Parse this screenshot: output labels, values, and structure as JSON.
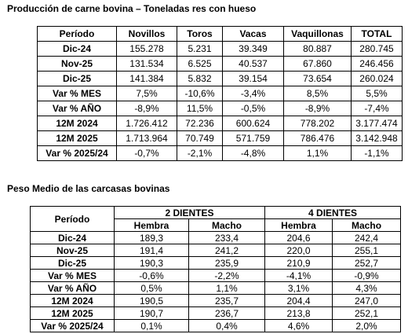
{
  "title1": "Producción de carne bovina – Toneladas res con hueso",
  "table1": {
    "headers": [
      "Período",
      "Novillos",
      "Toros",
      "Vacas",
      "Vaquillonas",
      "TOTAL"
    ],
    "rows": [
      [
        "Dic-24",
        "155.278",
        "5.231",
        "39.349",
        "80.887",
        "280.745"
      ],
      [
        "Nov-25",
        "131.534",
        "6.525",
        "40.537",
        "67.860",
        "246.456"
      ],
      [
        "Dic-25",
        "141.384",
        "5.832",
        "39.154",
        "73.654",
        "260.024"
      ],
      [
        "Var % MES",
        "7,5%",
        "-10,6%",
        "-3,4%",
        "8,5%",
        "5,5%"
      ],
      [
        "Var % AÑO",
        "-8,9%",
        "11,5%",
        "-0,5%",
        "-8,9%",
        "-7,4%"
      ],
      [
        "12M 2024",
        "1.726.412",
        "72.236",
        "600.624",
        "778.202",
        "3.177.474"
      ],
      [
        "12M 2025",
        "1.713.964",
        "70.749",
        "571.759",
        "786.476",
        "3.142.948"
      ],
      [
        "Var % 2025/24",
        "-0,7%",
        "-2,1%",
        "-4,8%",
        "1,1%",
        "-1,1%"
      ]
    ]
  },
  "title2": "Peso Medio de las carcasas bovinas",
  "table2": {
    "period_header": "Período",
    "groups": [
      "2 DIENTES",
      "4 DIENTES"
    ],
    "subheaders": [
      "Hembra",
      "Macho",
      "Hembra",
      "Macho"
    ],
    "rows": [
      [
        "Dic-24",
        "189,3",
        "233,4",
        "204,6",
        "242,4"
      ],
      [
        "Nov-25",
        "191,4",
        "241,2",
        "220,0",
        "255,1"
      ],
      [
        "Dic-25",
        "190,3",
        "235,9",
        "210,9",
        "252,7"
      ],
      [
        "Var % MES",
        "-0,6%",
        "-2,2%",
        "-4,1%",
        "-0,9%"
      ],
      [
        "Var % AÑO",
        "0,5%",
        "1,1%",
        "3,1%",
        "4,3%"
      ],
      [
        "12M 2024",
        "190,5",
        "235,7",
        "204,4",
        "247,0"
      ],
      [
        "12M 2025",
        "190,7",
        "236,7",
        "213,8",
        "252,1"
      ],
      [
        "Var % 2025/24",
        "0,1%",
        "0,4%",
        "4,6%",
        "2,0%"
      ]
    ]
  }
}
